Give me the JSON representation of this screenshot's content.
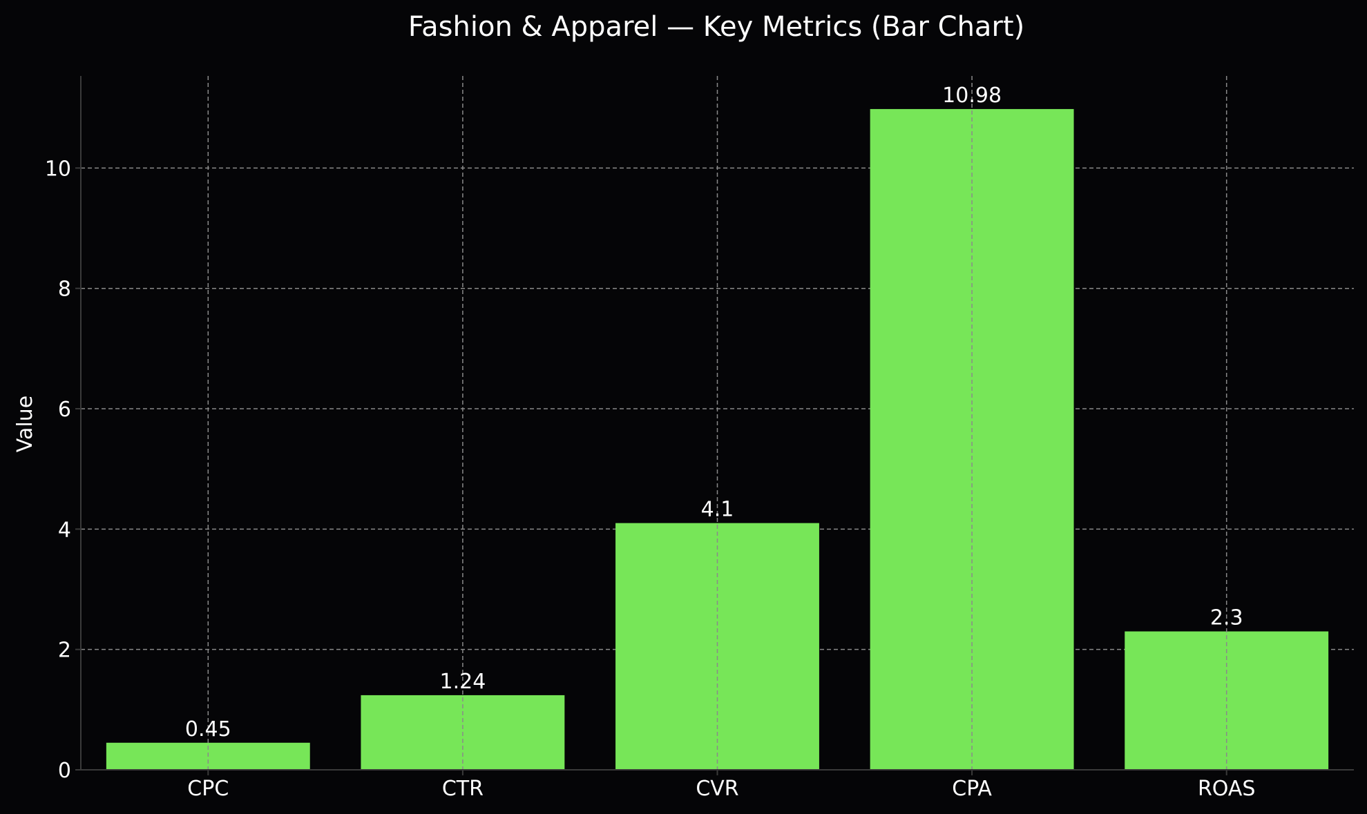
{
  "chart_data": {
    "type": "bar",
    "title": "Fashion & Apparel — Key Metrics (Bar Chart)",
    "xlabel": "",
    "ylabel": "Value",
    "categories": [
      "CPC",
      "CTR",
      "CVR",
      "CPA",
      "ROAS"
    ],
    "values": [
      0.45,
      1.24,
      4.1,
      10.98,
      2.3
    ],
    "value_labels": [
      "0.45",
      "1.24",
      "4.1",
      "10.98",
      "2.3"
    ],
    "ylim": [
      0,
      11.53
    ],
    "yticks": [
      0,
      2,
      4,
      6,
      8,
      10
    ],
    "grid": true,
    "colors": {
      "background": "#050507",
      "bar": "#77E658",
      "text": "#FFFFFF",
      "grid": "#8A8A8A",
      "axis": "#3A3A3A"
    }
  }
}
